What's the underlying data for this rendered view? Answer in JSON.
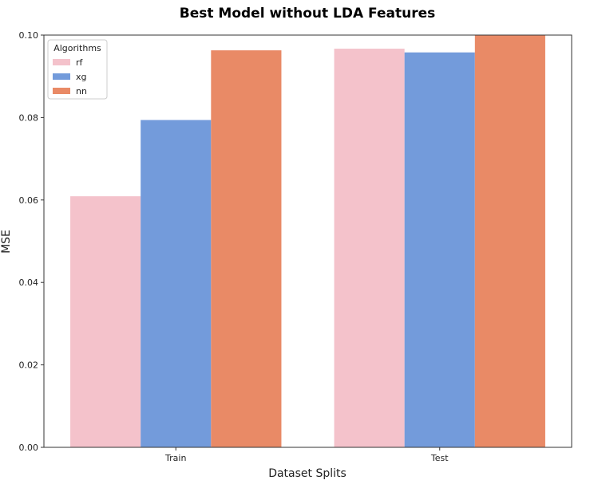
{
  "chart_data": {
    "type": "bar",
    "title": "Best Model without LDA Features",
    "xlabel": "Dataset Splits",
    "ylabel": "MSE",
    "categories": [
      "Train",
      "Test"
    ],
    "ylim": [
      0,
      0.1
    ],
    "yticks": [
      "0.00",
      "0.02",
      "0.04",
      "0.06",
      "0.08",
      "0.10"
    ],
    "legend": {
      "title": "Algorithms",
      "position": "top-left"
    },
    "series": [
      {
        "name": "rf",
        "color": "#f4c2cb",
        "values": [
          0.0609,
          0.0967
        ]
      },
      {
        "name": "xg",
        "color": "#739bdb",
        "values": [
          0.0794,
          0.0958
        ]
      },
      {
        "name": "nn",
        "color": "#e98a66",
        "values": [
          0.0963,
          0.1003
        ]
      }
    ]
  }
}
